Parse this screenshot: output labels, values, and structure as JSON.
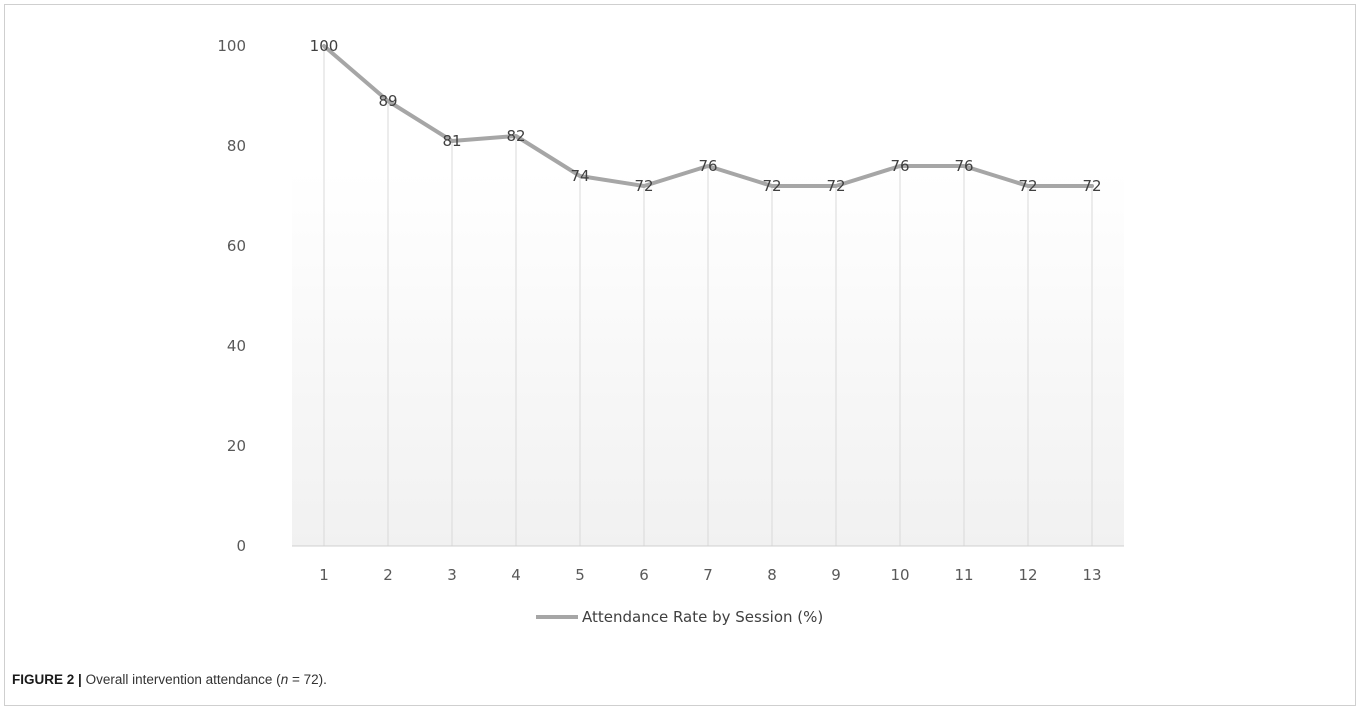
{
  "chart_data": {
    "type": "line",
    "categories": [
      "1",
      "2",
      "3",
      "4",
      "5",
      "6",
      "7",
      "8",
      "9",
      "10",
      "11",
      "12",
      "13"
    ],
    "series": [
      {
        "name": "Attendance Rate by Session (%)",
        "values": [
          100,
          89,
          81,
          82,
          74,
          72,
          76,
          72,
          72,
          76,
          76,
          72,
          72
        ],
        "color": "#a6a6a6"
      }
    ],
    "y_ticks": [
      "0",
      "20",
      "40",
      "60",
      "80",
      "100"
    ],
    "ylim": [
      0,
      100
    ],
    "grid": "vertical",
    "legend_position": "bottom",
    "title": "",
    "xlabel": "",
    "ylabel": ""
  },
  "caption": {
    "label": "FIGURE 2",
    "separator": "|",
    "text_before": " Overall intervention attendance (",
    "n_symbol": "n",
    "text_after": " = 72)."
  }
}
